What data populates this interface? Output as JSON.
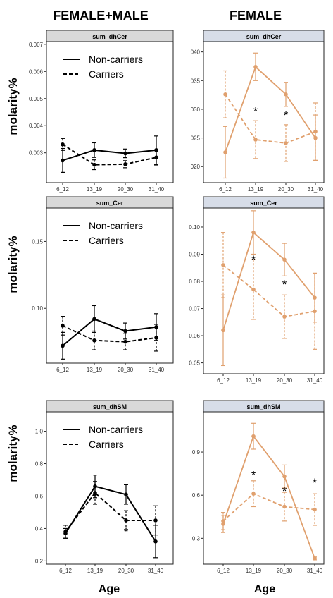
{
  "headers": {
    "left": "FEMALE+MALE",
    "right": "FEMALE"
  },
  "ylabel": "molarity%",
  "xlabel": "Age",
  "legend": {
    "solid": "Non-carriers",
    "dashed": "Carriers"
  },
  "colors": {
    "black": "#000000",
    "orange": "#e0a06e",
    "strip_left": "#d9d9d9",
    "strip_right": "#d7dde8"
  },
  "chart_data": [
    {
      "type": "line",
      "strip": "sum_dhCer",
      "categories": [
        "6_12",
        "13_19",
        "20_30",
        "31_40"
      ],
      "ylim": [
        0.0019,
        0.0071
      ],
      "yticks": [
        0.003,
        0.004,
        0.005,
        0.006,
        0.007
      ],
      "yticklabels": [
        "0.003",
        "0.004",
        "0.005",
        "0.006",
        "0.007"
      ],
      "color": "black",
      "legend": true,
      "stars": [],
      "series": [
        {
          "name": "Non-carriers",
          "dash": false,
          "values": [
            0.00272,
            0.0031,
            0.00298,
            0.0031
          ],
          "err": [
            0.00044,
            0.00027,
            0.00016,
            0.00052
          ]
        },
        {
          "name": "Carriers",
          "dash": true,
          "values": [
            0.00331,
            0.00256,
            0.00258,
            0.00283
          ],
          "err": [
            0.00022,
            0.00018,
            0.00013,
            0.00028
          ]
        }
      ]
    },
    {
      "type": "line",
      "strip": "sum_dhCer",
      "categories": [
        "6_12",
        "13_19",
        "20_30",
        "31_40"
      ],
      "ylim": [
        0.0172,
        0.0418
      ],
      "yticks": [
        0.02,
        0.025,
        0.03,
        0.035,
        0.04
      ],
      "yticklabels": [
        "020",
        "025",
        "030",
        "035",
        "040"
      ],
      "color": "orange",
      "legend": false,
      "stars": [
        {
          "cat": 1,
          "y": 0.0297
        },
        {
          "cat": 2,
          "y": 0.029
        }
      ],
      "series": [
        {
          "name": "Non-carriers",
          "dash": false,
          "values": [
            0.0225,
            0.0374,
            0.0326,
            0.025
          ],
          "err": [
            0.0045,
            0.0024,
            0.0021,
            0.004
          ]
        },
        {
          "name": "Carriers",
          "dash": true,
          "values": [
            0.0326,
            0.0247,
            0.0241,
            0.0261
          ],
          "err": [
            0.0041,
            0.0033,
            0.0032,
            0.005
          ]
        }
      ]
    },
    {
      "type": "line",
      "strip": "sum_Cer",
      "categories": [
        "6_12",
        "13_19",
        "20_30",
        "31_40"
      ],
      "ylim": [
        0.059,
        0.175
      ],
      "yticks": [
        0.1,
        0.15
      ],
      "yticklabels": [
        "0.10",
        "0.15"
      ],
      "color": "black",
      "legend": true,
      "stars": [],
      "series": [
        {
          "name": "Non-carriers",
          "dash": false,
          "values": [
            0.072,
            0.092,
            0.083,
            0.086
          ],
          "err": [
            0.01,
            0.01,
            0.006,
            0.01
          ]
        },
        {
          "name": "Carriers",
          "dash": true,
          "values": [
            0.087,
            0.076,
            0.075,
            0.078
          ],
          "err": [
            0.007,
            0.007,
            0.006,
            0.01
          ]
        }
      ]
    },
    {
      "type": "line",
      "strip": "sum_Cer",
      "categories": [
        "6_12",
        "13_19",
        "20_30",
        "31_40"
      ],
      "ylim": [
        0.046,
        0.107
      ],
      "yticks": [
        0.05,
        0.06,
        0.07,
        0.08,
        0.09,
        0.1
      ],
      "yticklabels": [
        "0.05",
        "0.06",
        "0.07",
        "0.08",
        "0.09",
        "0.10"
      ],
      "color": "orange",
      "legend": false,
      "stars": [
        {
          "cat": 1,
          "y": 0.088
        },
        {
          "cat": 2,
          "y": 0.079
        }
      ],
      "series": [
        {
          "name": "Non-carriers",
          "dash": false,
          "values": [
            0.062,
            0.098,
            0.088,
            0.074
          ],
          "err": [
            0.013,
            0.008,
            0.006,
            0.009
          ]
        },
        {
          "name": "Carriers",
          "dash": true,
          "values": [
            0.086,
            0.077,
            0.067,
            0.069
          ],
          "err": [
            0.012,
            0.011,
            0.008,
            0.014
          ]
        }
      ]
    },
    {
      "type": "line",
      "strip": "sum_dhSM",
      "categories": [
        "6_12",
        "13_19",
        "20_30",
        "31_40"
      ],
      "ylim": [
        0.18,
        1.12
      ],
      "yticks": [
        0.2,
        0.4,
        0.6,
        0.8,
        1.0
      ],
      "yticklabels": [
        "0.2",
        "0.4",
        "0.6",
        "0.8",
        "1.0"
      ],
      "color": "black",
      "legend": true,
      "stars": [
        {
          "cat": 1,
          "y": 0.6
        },
        {
          "cat": 2,
          "y": 0.38
        }
      ],
      "series": [
        {
          "name": "Non-carriers",
          "dash": false,
          "values": [
            0.37,
            0.66,
            0.61,
            0.32
          ],
          "err": [
            0.03,
            0.07,
            0.06,
            0.1
          ]
        },
        {
          "name": "Carriers",
          "dash": true,
          "values": [
            0.38,
            0.62,
            0.45,
            0.45
          ],
          "err": [
            0.04,
            0.07,
            0.06,
            0.09
          ]
        }
      ]
    },
    {
      "type": "line",
      "strip": "sum_dhSM",
      "categories": [
        "6_12",
        "13_19",
        "20_30",
        "31_40"
      ],
      "ylim": [
        0.12,
        1.18
      ],
      "yticks": [
        0.3,
        0.6,
        0.9
      ],
      "yticklabels": [
        "0.3",
        "0.6",
        "0.9"
      ],
      "color": "orange",
      "legend": false,
      "stars": [
        {
          "cat": 1,
          "y": 0.74
        },
        {
          "cat": 2,
          "y": 0.63
        },
        {
          "cat": 3,
          "y": 0.69
        }
      ],
      "series": [
        {
          "name": "Non-carriers",
          "dash": false,
          "values": [
            0.4,
            1.01,
            0.73,
            0.16
          ],
          "err": [
            0.06,
            0.09,
            0.08,
            0.01
          ]
        },
        {
          "name": "Carriers",
          "dash": true,
          "values": [
            0.42,
            0.61,
            0.52,
            0.5
          ],
          "err": [
            0.06,
            0.09,
            0.1,
            0.11
          ]
        }
      ]
    }
  ]
}
